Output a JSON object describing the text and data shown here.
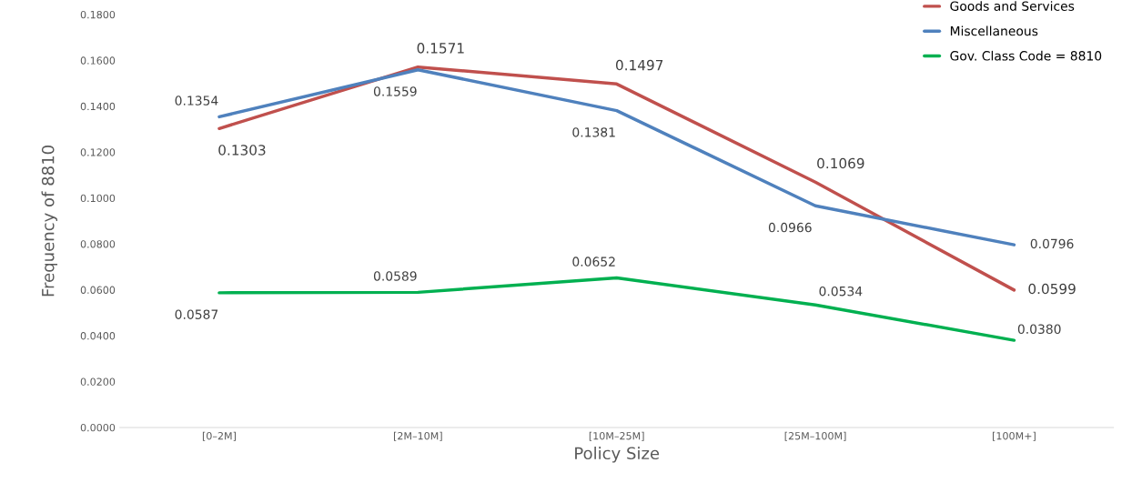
{
  "chart_data": {
    "type": "line",
    "xlabel": "Policy Size",
    "ylabel": "Frequency of 8810",
    "categories": [
      "[0–2M]",
      "[2M–10M]",
      "[10M–25M]",
      "[25M–100M]",
      "[100M+]"
    ],
    "series": [
      {
        "name": "Goods and Services",
        "color": "#c0504d",
        "values": [
          0.1303,
          0.1571,
          0.1497,
          0.1069,
          0.0599
        ],
        "value_labels": [
          "0.1303",
          "0.1571",
          "0.1497",
          "0.1069",
          "0.0599"
        ]
      },
      {
        "name": "Miscellaneous",
        "color": "#4f81bd",
        "values": [
          0.1354,
          0.1559,
          0.1381,
          0.0966,
          0.0796
        ],
        "value_labels": [
          "0.1354",
          "0.1559",
          "0.1381",
          "0.0966",
          "0.0796"
        ]
      },
      {
        "name": "Gov. Class Code = 8810",
        "color": "#00b050",
        "values": [
          0.0587,
          0.0589,
          0.0652,
          0.0534,
          0.038
        ],
        "value_labels": [
          "0.0587",
          "0.0589",
          "0.0652",
          "0.0534",
          "0.0380"
        ]
      }
    ],
    "ylim": [
      0,
      0.18
    ],
    "yticks": [
      {
        "value": 0,
        "label": "0.0000"
      },
      {
        "value": 0.02,
        "label": "0.0200"
      },
      {
        "value": 0.04,
        "label": "0.0400"
      },
      {
        "value": 0.06,
        "label": "0.0600"
      },
      {
        "value": 0.08,
        "label": "0.0800"
      },
      {
        "value": 0.1,
        "label": "0.1000"
      },
      {
        "value": 0.12,
        "label": "0.1200"
      },
      {
        "value": 0.14,
        "label": "0.1400"
      },
      {
        "value": 0.16,
        "label": "0.1600"
      },
      {
        "value": 0.18,
        "label": "0.1800"
      }
    ],
    "grid": false,
    "legend": "top right",
    "marker": "none",
    "line_style": "solid"
  }
}
